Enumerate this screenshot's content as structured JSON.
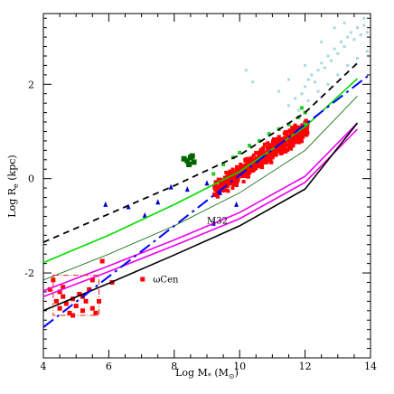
{
  "chart_data": {
    "type": "scatter",
    "title": "",
    "xlabel": "Log M",
    "xlabel_sub": "*",
    "xlabel_unit_open": " (M",
    "xlabel_unit_sub": "⊙",
    "xlabel_unit_close": ")",
    "ylabel": "Log R",
    "ylabel_sub": "e",
    "ylabel_unit": " (kpc)",
    "xlim": [
      4,
      14
    ],
    "ylim": [
      -3.8,
      3.5
    ],
    "x_ticks": [
      4,
      6,
      8,
      10,
      12,
      14
    ],
    "y_ticks": [
      -2,
      0,
      2
    ],
    "grid": false,
    "legend": "none",
    "colors": {
      "red_squares": "#ff0000",
      "light_blue_points": "#a8d8e0",
      "dark_green_squares": "#006400",
      "green_points": "#22cc22",
      "blue_triangles": "#0000cc",
      "black_dashed": "#000000",
      "green_line": "#00dd00",
      "dark_green_thin": "#006400",
      "magenta_line": "#ee00ee",
      "black_solid": "#000000",
      "blue_dashed": "#0000ff",
      "box_edge": "#dd2222"
    },
    "annotations": [
      {
        "text": "M32",
        "x": 9.0,
        "y": -0.95
      },
      {
        "text": "ωCen",
        "x": 7.35,
        "y": -2.2
      }
    ],
    "highlight_box": {
      "x": [
        4.3,
        5.7
      ],
      "y": [
        -2.9,
        -2.05
      ]
    },
    "lines": [
      {
        "style": "dashed",
        "color": "#000000",
        "points": [
          [
            4,
            -1.35
          ],
          [
            6,
            -0.75
          ],
          [
            8,
            -0.15
          ],
          [
            10,
            0.5
          ],
          [
            12,
            1.4
          ],
          [
            13.6,
            2.45
          ]
        ]
      },
      {
        "style": "solid",
        "color": "#00dd00",
        "points": [
          [
            4,
            -1.78
          ],
          [
            6,
            -1.2
          ],
          [
            8,
            -0.55
          ],
          [
            10,
            0.15
          ],
          [
            12,
            1.1
          ],
          [
            13.6,
            2.12
          ]
        ]
      },
      {
        "style": "thin",
        "color": "#006400",
        "points": [
          [
            4,
            -2.15
          ],
          [
            6,
            -1.6
          ],
          [
            8,
            -1.0
          ],
          [
            10,
            -0.3
          ],
          [
            12,
            0.6
          ],
          [
            13.6,
            1.75
          ]
        ]
      },
      {
        "style": "solid",
        "color": "#ee00ee",
        "points": [
          [
            4,
            -2.38
          ],
          [
            6,
            -1.85
          ],
          [
            8,
            -1.3
          ],
          [
            10,
            -0.72
          ],
          [
            12,
            0.05
          ],
          [
            13.6,
            1.18
          ]
        ]
      },
      {
        "style": "solid",
        "color": "#ee00ee",
        "points": [
          [
            4,
            -2.5
          ],
          [
            6,
            -1.97
          ],
          [
            8,
            -1.42
          ],
          [
            10,
            -0.85
          ],
          [
            12,
            -0.08
          ],
          [
            13.6,
            1.05
          ]
        ]
      },
      {
        "style": "solid",
        "color": "#000000",
        "points": [
          [
            4,
            -2.8
          ],
          [
            6,
            -2.22
          ],
          [
            8,
            -1.62
          ],
          [
            10,
            -1.0
          ],
          [
            12,
            -0.22
          ],
          [
            13.6,
            1.18
          ]
        ]
      },
      {
        "style": "longdash",
        "color": "#0000ff",
        "points": [
          [
            4,
            -3.15
          ],
          [
            14,
            2.22
          ]
        ]
      }
    ],
    "series": [
      {
        "kind": "square",
        "color": "#ff0000",
        "size": 5,
        "points": [
          [
            4.4,
            -2.6
          ],
          [
            4.5,
            -2.75
          ],
          [
            4.6,
            -2.5
          ],
          [
            4.7,
            -2.65
          ],
          [
            4.8,
            -2.85
          ],
          [
            4.9,
            -2.55
          ],
          [
            5.0,
            -2.7
          ],
          [
            5.1,
            -2.45
          ],
          [
            5.2,
            -2.8
          ],
          [
            5.3,
            -2.6
          ],
          [
            5.4,
            -2.35
          ],
          [
            5.5,
            -2.75
          ],
          [
            4.6,
            -2.3
          ],
          [
            4.9,
            -2.9
          ],
          [
            5.2,
            -2.5
          ],
          [
            5.5,
            -2.15
          ],
          [
            4.3,
            -2.15
          ],
          [
            4.5,
            -2.4
          ],
          [
            5.8,
            -1.75
          ],
          [
            4.2,
            -2.35
          ]
        ]
      },
      {
        "kind": "square",
        "color": "#ff0000",
        "size": 5,
        "points": [
          [
            6.1,
            -2.2
          ],
          [
            5.6,
            -2.85
          ],
          [
            5.7,
            -2.6
          ]
        ]
      },
      {
        "kind": "square",
        "color": "#a8d8e0",
        "size": 3,
        "points": [
          [
            11.5,
            1.55
          ],
          [
            11.7,
            1.7
          ],
          [
            11.9,
            1.8
          ],
          [
            12.0,
            1.95
          ],
          [
            12.1,
            2.1
          ],
          [
            12.2,
            2.2
          ],
          [
            12.3,
            2.05
          ],
          [
            12.4,
            2.3
          ],
          [
            12.5,
            2.45
          ],
          [
            12.6,
            2.35
          ],
          [
            12.7,
            2.6
          ],
          [
            12.8,
            2.5
          ],
          [
            12.9,
            2.75
          ],
          [
            13.0,
            2.65
          ],
          [
            13.1,
            2.9
          ],
          [
            13.2,
            2.8
          ],
          [
            13.3,
            3.0
          ],
          [
            13.4,
            3.1
          ],
          [
            13.5,
            2.95
          ],
          [
            13.6,
            3.2
          ],
          [
            13.7,
            3.05
          ],
          [
            13.8,
            3.25
          ],
          [
            13.9,
            3.1
          ],
          [
            11.8,
            1.45
          ],
          [
            12.1,
            1.65
          ],
          [
            12.4,
            1.85
          ],
          [
            12.7,
            2.0
          ],
          [
            13.0,
            2.2
          ],
          [
            13.3,
            2.4
          ],
          [
            13.6,
            2.55
          ],
          [
            12.0,
            2.4
          ],
          [
            12.5,
            2.9
          ],
          [
            13.2,
            3.3
          ],
          [
            13.8,
            3.4
          ],
          [
            12.9,
            3.2
          ],
          [
            11.5,
            2.1
          ],
          [
            10.2,
            2.3
          ],
          [
            10.4,
            2.05
          ],
          [
            11.2,
            1.85
          ],
          [
            13.9,
            2.7
          ]
        ]
      },
      {
        "kind": "square",
        "color": "#006400",
        "size": 6,
        "points": [
          [
            8.3,
            0.42
          ],
          [
            8.4,
            0.38
          ],
          [
            8.5,
            0.45
          ],
          [
            8.6,
            0.35
          ],
          [
            8.45,
            0.3
          ],
          [
            8.55,
            0.48
          ]
        ]
      },
      {
        "kind": "square",
        "color": "#22cc22",
        "size": 4,
        "points": [
          [
            9.2,
            0.1
          ],
          [
            9.5,
            0.3
          ],
          [
            9.8,
            0.45
          ],
          [
            10.0,
            0.55
          ],
          [
            10.3,
            0.7
          ],
          [
            10.6,
            0.8
          ],
          [
            10.9,
            0.95
          ],
          [
            11.2,
            1.05
          ],
          [
            11.5,
            1.15
          ],
          [
            11.8,
            1.3
          ],
          [
            12.0,
            1.4
          ],
          [
            12.0,
            1.15
          ],
          [
            11.9,
            1.5
          ]
        ]
      },
      {
        "kind": "triangle",
        "color": "#0000cc",
        "size": 5,
        "points": [
          [
            5.9,
            -0.55
          ],
          [
            6.6,
            -0.6
          ],
          [
            7.1,
            -0.78
          ],
          [
            7.5,
            -0.5
          ],
          [
            7.9,
            -0.18
          ],
          [
            8.4,
            -0.23
          ],
          [
            9.0,
            -0.1
          ],
          [
            9.4,
            -0.3
          ],
          [
            9.9,
            -0.55
          ],
          [
            9.2,
            -0.95
          ]
        ]
      }
    ],
    "cloud": {
      "color": "#ff0000",
      "size": 4,
      "count": 700,
      "x_range": [
        9.2,
        12.1
      ],
      "center_line": [
        [
          9.2,
          -0.25
        ],
        [
          10,
          0.1
        ],
        [
          11,
          0.6
        ],
        [
          12,
          1.05
        ]
      ],
      "scatter_y": 0.28
    }
  }
}
